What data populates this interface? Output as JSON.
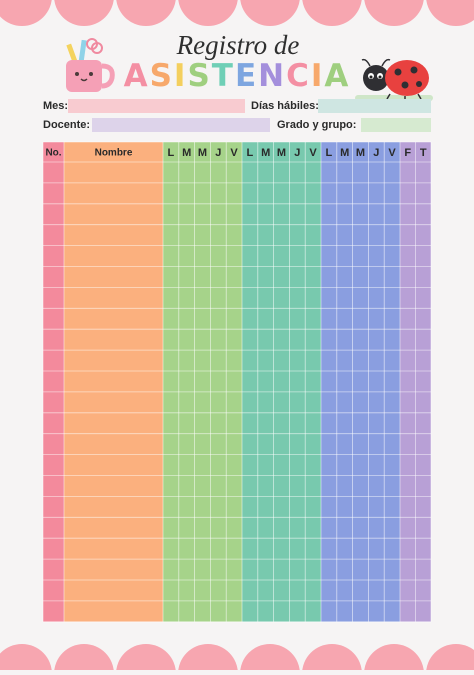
{
  "header": {
    "title_line1": "Registro de",
    "title_line2": "ASISTENCIA"
  },
  "fields": [
    {
      "label": "Mes:"
    },
    {
      "label": "Días hábiles:"
    },
    {
      "label": "Docente:"
    },
    {
      "label": "Grado y grupo:"
    }
  ],
  "table": {
    "columns": [
      "No.",
      "Nombre",
      "L",
      "M",
      "M",
      "J",
      "V",
      "L",
      "M",
      "M",
      "J",
      "V",
      "L",
      "M",
      "M",
      "J",
      "V",
      "F",
      "T"
    ]
  }
}
